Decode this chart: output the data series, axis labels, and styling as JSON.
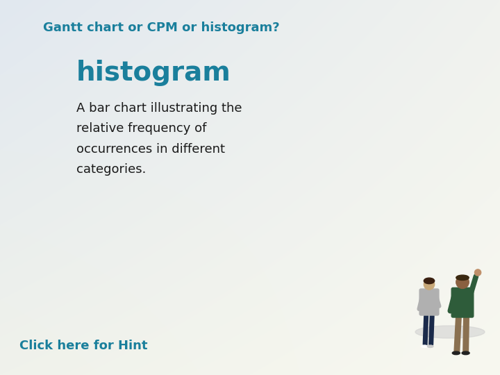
{
  "title_text": "Gantt chart or CPM or histogram?",
  "title_color": "#1a7f9c",
  "title_fontsize": 13,
  "answer_text": "histogram",
  "answer_color": "#1a7f9c",
  "answer_fontsize": 28,
  "body_text": "A bar chart illustrating the\nrelative frequency of\noccurrences in different\ncategories.",
  "body_color": "#1a1a1a",
  "body_fontsize": 13,
  "hint_text": "Click here for Hint",
  "hint_color": "#1a7f9c",
  "hint_fontsize": 13,
  "bg_topleft": [
    225,
    232,
    240
  ],
  "bg_topright": [
    240,
    242,
    238
  ],
  "bg_bottomleft": [
    240,
    242,
    235
  ],
  "bg_bottomright": [
    248,
    248,
    240
  ],
  "figsize": [
    7.2,
    5.4
  ],
  "dpi": 100
}
